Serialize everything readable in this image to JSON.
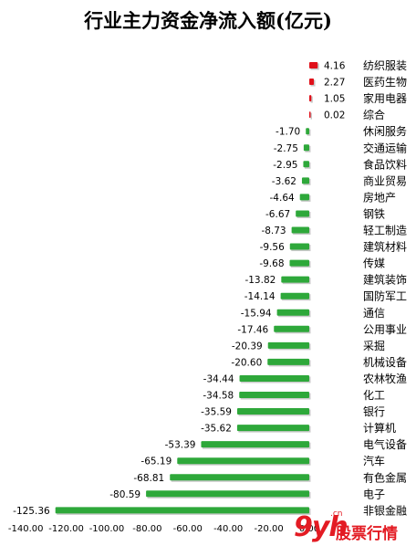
{
  "chart_data": {
    "type": "bar",
    "orientation": "horizontal",
    "title": "行业主力资金净流入额(亿元)",
    "xlabel": "",
    "ylabel": "",
    "xlim": [
      -140,
      0
    ],
    "xticks": [
      "-140.00",
      "-120.00",
      "-100.00",
      "-80.00",
      "-60.00",
      "-40.00",
      "-20.00",
      "0.00"
    ],
    "xtick_values": [
      -140,
      -120,
      -100,
      -80,
      -60,
      -40,
      -20,
      0
    ],
    "grid": false,
    "legend": "none",
    "colors": {
      "positive": "#e0101a",
      "negative": "#2ea83a"
    },
    "categories": [
      "纺织服装",
      "医药生物",
      "家用电器",
      "综合",
      "休闲服务",
      "交通运输",
      "食品饮料",
      "商业贸易",
      "房地产",
      "钢铁",
      "轻工制造",
      "建筑材料",
      "传媒",
      "建筑装饰",
      "国防军工",
      "通信",
      "公用事业",
      "采掘",
      "机械设备",
      "农林牧渔",
      "化工",
      "银行",
      "计算机",
      "电气设备",
      "汽车",
      "有色金属",
      "电子",
      "非银金融"
    ],
    "values": [
      4.16,
      2.27,
      1.05,
      0.02,
      -1.7,
      -2.75,
      -2.95,
      -3.62,
      -4.64,
      -6.67,
      -8.73,
      -9.56,
      -9.68,
      -13.82,
      -14.14,
      -15.94,
      -17.46,
      -20.39,
      -20.6,
      -34.44,
      -34.58,
      -35.59,
      -35.62,
      -53.39,
      -65.19,
      -68.81,
      -80.59,
      -125.36
    ],
    "value_labels": [
      "4.16",
      "2.27",
      "1.05",
      "0.02",
      "-1.70",
      "-2.75",
      "-2.95",
      "-3.62",
      "-4.64",
      "-6.67",
      "-8.73",
      "-9.56",
      "-9.68",
      "-13.82",
      "-14.14",
      "-15.94",
      "-17.46",
      "-20.39",
      "-20.60",
      "-34.44",
      "-34.58",
      "-35.59",
      "-35.62",
      "-53.39",
      "-65.19",
      "-68.81",
      "-80.59",
      "-125.36"
    ]
  },
  "watermark": {
    "logo": "9yh",
    "text": "股票行情",
    "suffix": ".cn"
  }
}
